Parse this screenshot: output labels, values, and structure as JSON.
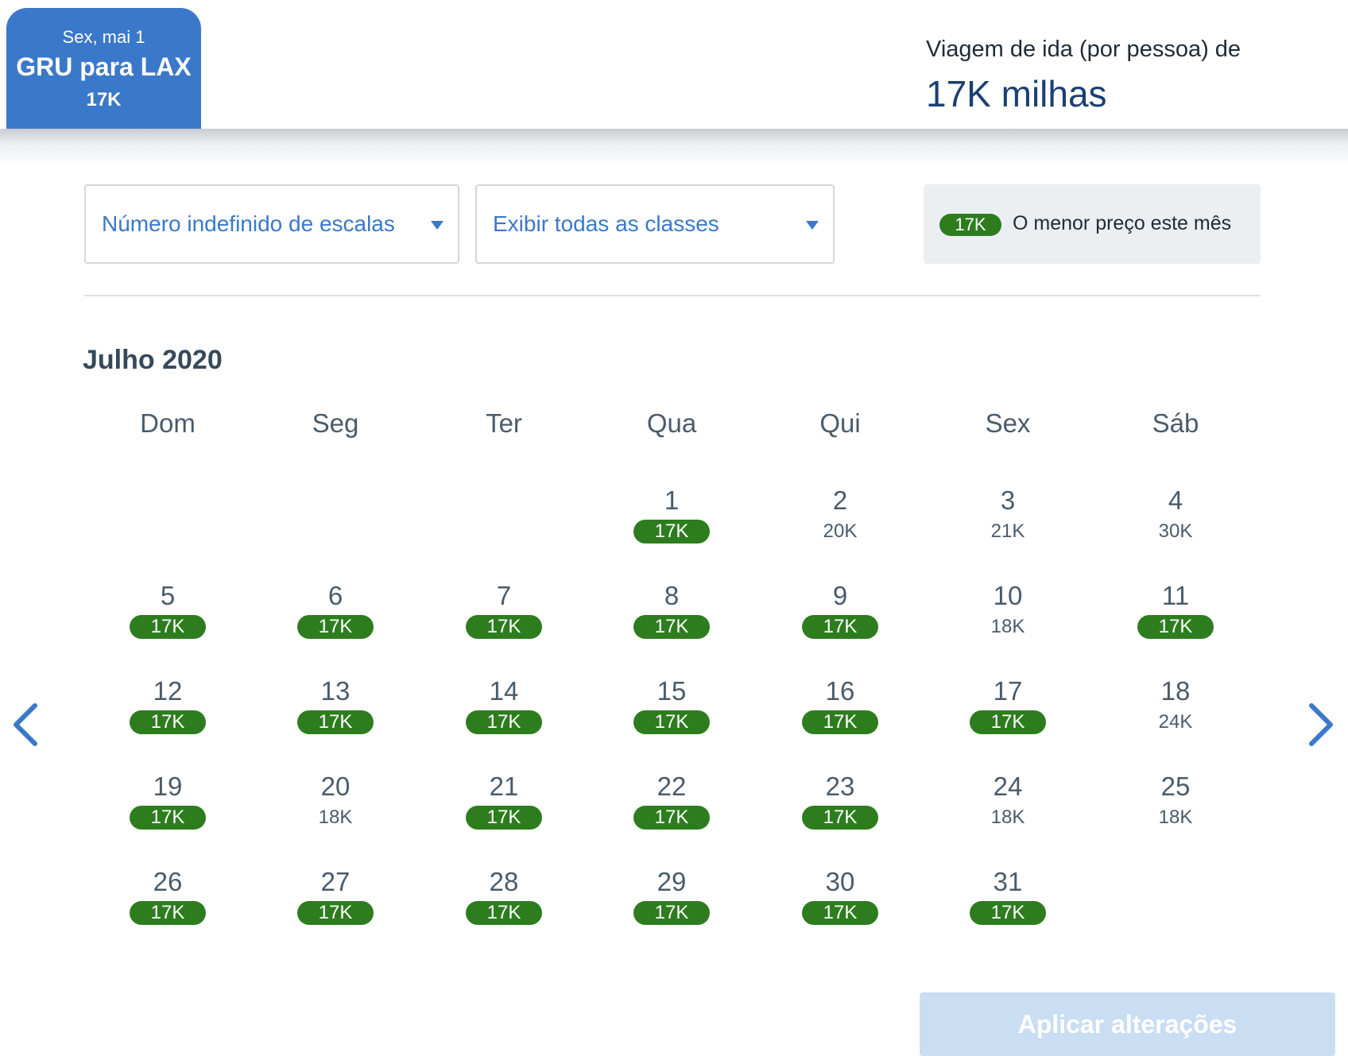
{
  "trip_tab": {
    "date": "Sex, mai 1",
    "route": "GRU para LAX",
    "price": "17K"
  },
  "summary": {
    "label": "Viagem de ida (por pessoa) de",
    "value": "17K milhas"
  },
  "filters": {
    "stops": "Número indefinido de escalas",
    "classes": "Exibir todas as classes"
  },
  "legend": {
    "pill": "17K",
    "text": "O menor preço este mês"
  },
  "calendar": {
    "month": "Julho 2020",
    "weekdays": [
      "Dom",
      "Seg",
      "Ter",
      "Qua",
      "Qui",
      "Sex",
      "Sáb"
    ],
    "first_weekday_index": 3,
    "days": [
      {
        "day": "1",
        "price": "17K",
        "lowest": true
      },
      {
        "day": "2",
        "price": "20K",
        "lowest": false
      },
      {
        "day": "3",
        "price": "21K",
        "lowest": false
      },
      {
        "day": "4",
        "price": "30K",
        "lowest": false
      },
      {
        "day": "5",
        "price": "17K",
        "lowest": true
      },
      {
        "day": "6",
        "price": "17K",
        "lowest": true
      },
      {
        "day": "7",
        "price": "17K",
        "lowest": true
      },
      {
        "day": "8",
        "price": "17K",
        "lowest": true
      },
      {
        "day": "9",
        "price": "17K",
        "lowest": true
      },
      {
        "day": "10",
        "price": "18K",
        "lowest": false
      },
      {
        "day": "11",
        "price": "17K",
        "lowest": true
      },
      {
        "day": "12",
        "price": "17K",
        "lowest": true
      },
      {
        "day": "13",
        "price": "17K",
        "lowest": true
      },
      {
        "day": "14",
        "price": "17K",
        "lowest": true
      },
      {
        "day": "15",
        "price": "17K",
        "lowest": true
      },
      {
        "day": "16",
        "price": "17K",
        "lowest": true
      },
      {
        "day": "17",
        "price": "17K",
        "lowest": true
      },
      {
        "day": "18",
        "price": "24K",
        "lowest": false
      },
      {
        "day": "19",
        "price": "17K",
        "lowest": true
      },
      {
        "day": "20",
        "price": "18K",
        "lowest": false
      },
      {
        "day": "21",
        "price": "17K",
        "lowest": true
      },
      {
        "day": "22",
        "price": "17K",
        "lowest": true
      },
      {
        "day": "23",
        "price": "17K",
        "lowest": true
      },
      {
        "day": "24",
        "price": "18K",
        "lowest": false
      },
      {
        "day": "25",
        "price": "18K",
        "lowest": false
      },
      {
        "day": "26",
        "price": "17K",
        "lowest": true
      },
      {
        "day": "27",
        "price": "17K",
        "lowest": true
      },
      {
        "day": "28",
        "price": "17K",
        "lowest": true
      },
      {
        "day": "29",
        "price": "17K",
        "lowest": true
      },
      {
        "day": "30",
        "price": "17K",
        "lowest": true
      },
      {
        "day": "31",
        "price": "17K",
        "lowest": true
      }
    ]
  },
  "nav": {
    "prev_icon": "chevron-left-icon",
    "next_icon": "chevron-right-icon"
  },
  "apply_label": "Aplicar alterações",
  "colors": {
    "accent": "#3a78c9",
    "lowest_price": "#2d7d1e",
    "apply_disabled": "#c9ddf3"
  }
}
